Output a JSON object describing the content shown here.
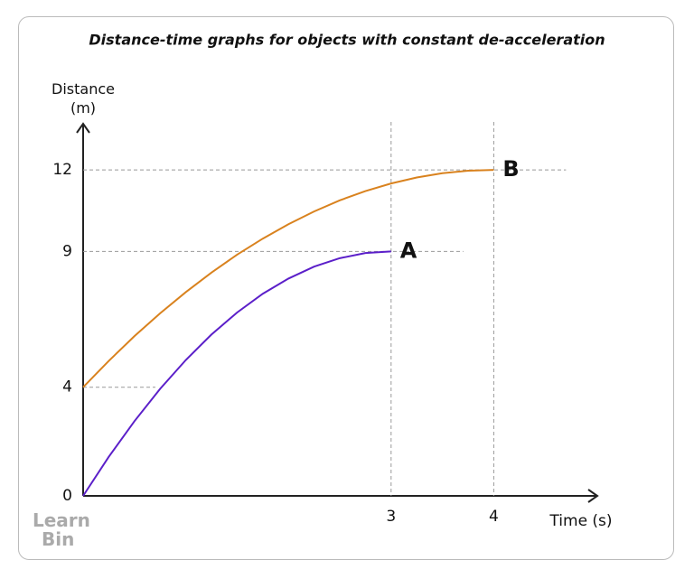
{
  "chart_data": {
    "type": "line",
    "title": "Distance-time graphs for objects with constant de-acceleration",
    "x_label": "Time (s)",
    "y_label": "Distance (m)",
    "x": [
      0,
      0.25,
      0.5,
      0.75,
      1,
      1.25,
      1.5,
      1.75,
      2,
      2.25,
      2.5,
      2.75,
      3,
      3.25,
      3.5,
      3.75,
      4
    ],
    "series": [
      {
        "name": "A",
        "color": "#5b1fc9",
        "values": [
          0,
          1.44,
          2.75,
          3.94,
          5,
          5.94,
          6.75,
          7.44,
          8,
          8.44,
          8.75,
          8.94,
          9,
          null,
          null,
          null,
          null
        ]
      },
      {
        "name": "B",
        "color": "#d9821e",
        "values": [
          4,
          4.97,
          5.88,
          6.72,
          7.5,
          8.22,
          8.88,
          9.47,
          10,
          10.47,
          10.88,
          11.22,
          11.5,
          11.72,
          11.88,
          11.97,
          12
        ]
      }
    ],
    "xlim": [
      0,
      5
    ],
    "ylim": [
      0,
      13.5
    ],
    "xticks": [
      3,
      4
    ],
    "yticks": [
      0,
      4,
      9,
      12
    ],
    "grid": true
  },
  "logo": {
    "line1": "Learn",
    "line2": "Bin"
  }
}
